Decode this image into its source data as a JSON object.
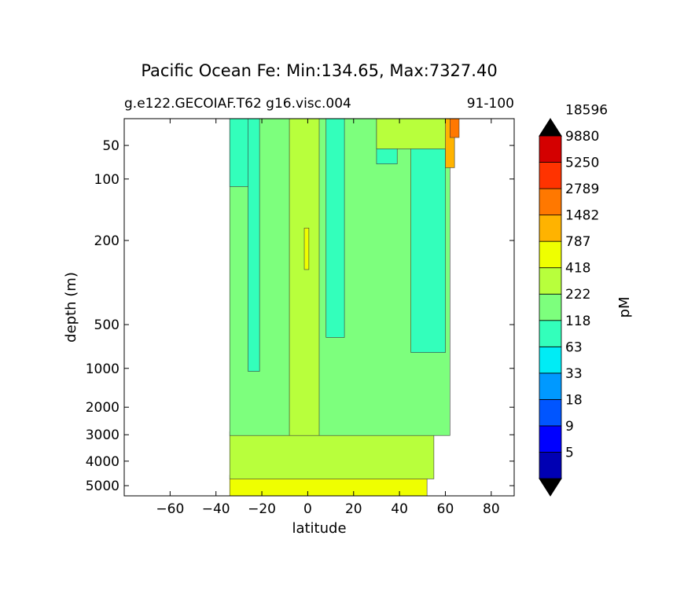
{
  "chart_data": {
    "type": "heatmap",
    "title": "Pacific Ocean Fe: Min:134.65, Max:7327.40",
    "subtitle_left": "g.e122.GECOIAF.T62 g16.visc.004",
    "subtitle_right": "91-100",
    "xlabel": "latitude",
    "ylabel": "depth (m)",
    "xlim": [
      -80,
      90
    ],
    "xticks": [
      -60,
      -40,
      -20,
      0,
      20,
      40,
      60,
      80
    ],
    "yticks": [
      {
        "label": "50",
        "frac": 0.071
      },
      {
        "label": "100",
        "frac": 0.16
      },
      {
        "label": "200",
        "frac": 0.323
      },
      {
        "label": "500",
        "frac": 0.546
      },
      {
        "label": "1000",
        "frac": 0.662
      },
      {
        "label": "2000",
        "frac": 0.765
      },
      {
        "label": "3000",
        "frac": 0.838
      },
      {
        "label": "4000",
        "frac": 0.908
      },
      {
        "label": "5000",
        "frac": 0.973
      }
    ],
    "colorbar": {
      "label": "pM",
      "levels": [
        "5",
        "9",
        "18",
        "33",
        "63",
        "118",
        "222",
        "418",
        "787",
        "1482",
        "2789",
        "5250",
        "9880",
        "18596"
      ],
      "colors": [
        "#000080",
        "#0000b3",
        "#0000ff",
        "#0055ff",
        "#0099ff",
        "#00ecf5",
        "#33ffbb",
        "#7dff7d",
        "#b8ff3c",
        "#efff00",
        "#ffb300",
        "#ff7800",
        "#ff3300",
        "#d40000",
        "#800000"
      ]
    },
    "regions": [
      {
        "name": "deep-lower",
        "color": "#efff00",
        "lat0": -34,
        "lat1": 52,
        "frac0": 0.945,
        "frac1": 1.0
      },
      {
        "name": "deep-band",
        "color": "#b8ff3c",
        "lat0": -34,
        "lat1": 55,
        "frac0": 0.83,
        "frac1": 0.955
      },
      {
        "name": "mid-water",
        "color": "#7dff7d",
        "lat0": -34,
        "lat1": 62,
        "frac0": 0.0,
        "frac1": 0.84
      },
      {
        "name": "south-surface",
        "color": "#33ffbb",
        "lat0": -34,
        "lat1": -24,
        "frac0": 0.0,
        "frac1": 0.18
      },
      {
        "name": "south-column",
        "color": "#33ffbb",
        "lat0": -26,
        "lat1": -21,
        "frac0": 0.0,
        "frac1": 0.67
      },
      {
        "name": "equator-column",
        "color": "#b8ff3c",
        "lat0": -8,
        "lat1": 5,
        "frac0": 0.0,
        "frac1": 0.84
      },
      {
        "name": "equator-core",
        "color": "#efff00",
        "lat0": -1.5,
        "lat1": 0.5,
        "frac0": 0.29,
        "frac1": 0.4
      },
      {
        "name": "north-column",
        "color": "#33ffbb",
        "lat0": 8,
        "lat1": 16,
        "frac0": 0.0,
        "frac1": 0.58
      },
      {
        "name": "subtropic-north",
        "color": "#33ffbb",
        "lat0": 30,
        "lat1": 39,
        "frac0": 0.0,
        "frac1": 0.12
      },
      {
        "name": "midlat-north",
        "color": "#33ffbb",
        "lat0": 45,
        "lat1": 60,
        "frac0": 0.06,
        "frac1": 0.62
      },
      {
        "name": "north-surface",
        "color": "#b8ff3c",
        "lat0": 30,
        "lat1": 62,
        "frac0": 0.0,
        "frac1": 0.08
      },
      {
        "name": "arctic-edge-1",
        "color": "#ffb300",
        "lat0": 60,
        "lat1": 64,
        "frac0": 0.0,
        "frac1": 0.13
      },
      {
        "name": "arctic-edge-2",
        "color": "#ff7800",
        "lat0": 62,
        "lat1": 66,
        "frac0": 0.0,
        "frac1": 0.05
      }
    ]
  }
}
